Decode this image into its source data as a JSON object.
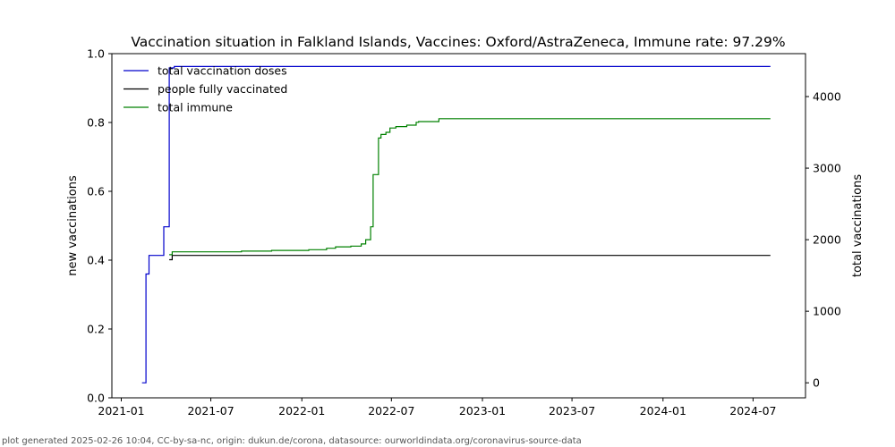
{
  "footer": "plot generated 2025-02-26 10:04, CC-by-sa-nc, origin: dukun.de/corona, datasource: ourworldindata.org/coronavirus-source-data",
  "chart_data": {
    "type": "line",
    "title": "Vaccination situation in Falkland Islands, Vaccines: Oxford/AstraZeneca, Immune rate: 97.29%",
    "ylabel_left": "new vaccinations",
    "ylabel_right": "total vaccinations",
    "ylim_left": [
      0,
      1
    ],
    "ylim_right": [
      -210,
      4600
    ],
    "xlim": [
      "2020-12-13",
      "2024-10-15"
    ],
    "x_ticks": [
      "2021-01",
      "2021-07",
      "2022-01",
      "2022-07",
      "2023-01",
      "2023-07",
      "2024-01",
      "2024-07"
    ],
    "y_ticks_left": [
      "0.0",
      "0.2",
      "0.4",
      "0.6",
      "0.8",
      "1.0"
    ],
    "y_ticks_right": [
      "0",
      "1000",
      "2000",
      "3000",
      "4000"
    ],
    "legend_position": "top-left",
    "grid": false,
    "series": [
      {
        "name": "total vaccination doses",
        "color": "#0000cc",
        "axis": "right",
        "step": true,
        "points": [
          [
            "2021-02-12",
            0
          ],
          [
            "2021-02-20",
            1520
          ],
          [
            "2021-02-26",
            1780
          ],
          [
            "2021-03-28",
            2180
          ],
          [
            "2021-04-08",
            4400
          ],
          [
            "2021-04-18",
            4420
          ],
          [
            "2024-08-05",
            4420
          ]
        ]
      },
      {
        "name": "people fully vaccinated",
        "color": "#000000",
        "axis": "right",
        "step": true,
        "points": [
          [
            "2021-04-08",
            1720
          ],
          [
            "2021-04-14",
            1780
          ],
          [
            "2024-08-05",
            1780
          ]
        ]
      },
      {
        "name": "total immune",
        "color": "#008000",
        "axis": "right",
        "step": true,
        "points": [
          [
            "2021-04-08",
            1790
          ],
          [
            "2021-04-14",
            1830
          ],
          [
            "2021-09-01",
            1840
          ],
          [
            "2021-11-01",
            1850
          ],
          [
            "2022-01-15",
            1860
          ],
          [
            "2022-02-20",
            1880
          ],
          [
            "2022-03-10",
            1900
          ],
          [
            "2022-04-10",
            1910
          ],
          [
            "2022-05-01",
            1940
          ],
          [
            "2022-05-10",
            2000
          ],
          [
            "2022-05-20",
            2180
          ],
          [
            "2022-05-25",
            2910
          ],
          [
            "2022-06-05",
            3420
          ],
          [
            "2022-06-10",
            3470
          ],
          [
            "2022-06-20",
            3500
          ],
          [
            "2022-06-28",
            3560
          ],
          [
            "2022-07-10",
            3580
          ],
          [
            "2022-08-01",
            3600
          ],
          [
            "2022-08-20",
            3640
          ],
          [
            "2022-08-25",
            3650
          ],
          [
            "2022-10-05",
            3690
          ],
          [
            "2024-08-05",
            3690
          ]
        ]
      }
    ]
  }
}
